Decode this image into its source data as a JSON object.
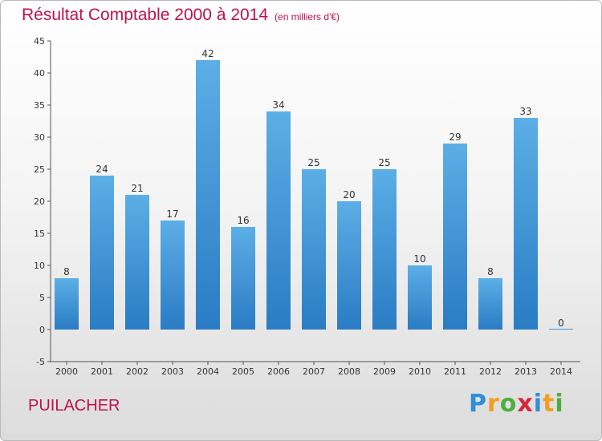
{
  "chart_data": {
    "type": "bar",
    "title": "Résultat Comptable 2000 à 2014",
    "subtitle": "(en milliers d'€)",
    "xlabel": "",
    "ylabel": "",
    "ylim": [
      -5,
      45
    ],
    "yticks": [
      -5,
      0,
      5,
      10,
      15,
      20,
      25,
      30,
      35,
      40,
      45
    ],
    "grid": false,
    "categories": [
      "2000",
      "2001",
      "2002",
      "2003",
      "2004",
      "2005",
      "2006",
      "2007",
      "2008",
      "2009",
      "2010",
      "2011",
      "2012",
      "2013",
      "2014"
    ],
    "values": [
      8,
      24,
      21,
      17,
      42,
      16,
      34,
      25,
      20,
      25,
      10,
      29,
      8,
      33,
      0
    ]
  },
  "commune": "PUILACHER",
  "logo": {
    "letters": [
      "P",
      "r",
      "o",
      "x",
      "i",
      "t",
      "i"
    ],
    "colors": [
      "#2f8fd8",
      "#f0a020",
      "#4caf3c",
      "#d8263a",
      "#2f8fd8",
      "#f0a020",
      "#4caf3c"
    ]
  },
  "colors": {
    "accent": "#c0104f",
    "bar_top": "#5caee6",
    "bar_bottom": "#2a7cc4",
    "axis": "#555555"
  }
}
